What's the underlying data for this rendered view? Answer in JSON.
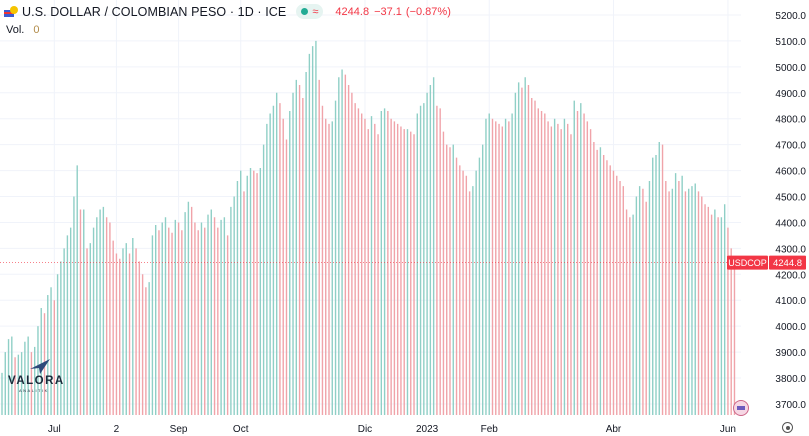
{
  "header": {
    "symbol_title": "U.S. DOLLAR / COLOMBIAN PESO · 1D · ICE",
    "approx_icon": "≈",
    "last_price": "4244.8",
    "change": "−37.1",
    "change_pct": "(−0.87%)",
    "volume_label": "Vol.",
    "volume_value": "0"
  },
  "price_tag": {
    "symbol": "USDCOP",
    "value": "4244.8"
  },
  "watermark": {
    "name": "VALORA",
    "sub": "ANALITIK"
  },
  "colors": {
    "up": "#8fcfc6",
    "down": "#f0a3a9",
    "tag": "#f23645",
    "grid": "#f0f3fa",
    "axis_text": "#131722"
  },
  "chart_data": {
    "type": "bar",
    "title": "U.S. DOLLAR / COLOMBIAN PESO · 1D · ICE",
    "ylim": [
      3650,
      5250
    ],
    "y_ticks": [
      3700,
      3800,
      3900,
      4000,
      4100,
      4200,
      4300,
      4400,
      4500,
      4600,
      4700,
      4800,
      4900,
      5000,
      5100,
      5200
    ],
    "y_tick_labels": [
      "3700.0",
      "3800.0",
      "3900.0",
      "4000.0",
      "4100.0",
      "4200.0",
      "4300.0",
      "4400.0",
      "4500.0",
      "4600.0",
      "4700.0",
      "4800.0",
      "4900.0",
      "5000.0",
      "5100.0",
      "5200.0"
    ],
    "x_ticks": [
      {
        "label": "Jul",
        "index": 16
      },
      {
        "label": "2",
        "index": 35
      },
      {
        "label": "Sep",
        "index": 54
      },
      {
        "label": "Oct",
        "index": 73
      },
      {
        "label": "Dic",
        "index": 111
      },
      {
        "label": "2023",
        "index": 130
      },
      {
        "label": "Feb",
        "index": 149
      },
      {
        "label": "Abr",
        "index": 187
      },
      {
        "label": "Jun",
        "index": 222
      }
    ],
    "values": [
      3820,
      3900,
      3950,
      3960,
      3880,
      3890,
      3900,
      3940,
      3960,
      3900,
      3920,
      4000,
      4070,
      4050,
      4120,
      4150,
      4100,
      4200,
      4250,
      4300,
      4350,
      4380,
      4500,
      4620,
      4450,
      4450,
      4300,
      4320,
      4380,
      4420,
      4450,
      4460,
      4420,
      4400,
      4330,
      4280,
      4260,
      4300,
      4320,
      4280,
      4340,
      4300,
      4250,
      4200,
      4150,
      4170,
      4350,
      4390,
      4370,
      4400,
      4420,
      4380,
      4360,
      4410,
      4400,
      4370,
      4440,
      4480,
      4460,
      4400,
      4370,
      4400,
      4380,
      4430,
      4450,
      4420,
      4380,
      4410,
      4420,
      4350,
      4460,
      4500,
      4560,
      4600,
      4520,
      4580,
      4610,
      4600,
      4590,
      4610,
      4700,
      4780,
      4820,
      4850,
      4900,
      4860,
      4800,
      4720,
      4830,
      4900,
      4950,
      4930,
      4880,
      4980,
      5050,
      5080,
      5100,
      4950,
      4850,
      4800,
      4780,
      4790,
      4870,
      4960,
      4990,
      4970,
      4930,
      4900,
      4860,
      4840,
      4820,
      4800,
      4760,
      4810,
      4780,
      4740,
      4830,
      4840,
      4830,
      4800,
      4790,
      4780,
      4770,
      4760,
      4760,
      4750,
      4740,
      4820,
      4850,
      4860,
      4900,
      4930,
      4960,
      4850,
      4840,
      4750,
      4700,
      4690,
      4700,
      4650,
      4620,
      4600,
      4580,
      4520,
      4540,
      4600,
      4650,
      4700,
      4800,
      4820,
      4800,
      4790,
      4780,
      4770,
      4800,
      4790,
      4820,
      4900,
      4940,
      4920,
      4960,
      4930,
      4880,
      4870,
      4840,
      4830,
      4820,
      4790,
      4770,
      4800,
      4780,
      4760,
      4800,
      4780,
      4740,
      4870,
      4830,
      4860,
      4820,
      4790,
      4760,
      4710,
      4680,
      4690,
      4660,
      4640,
      4620,
      4600,
      4580,
      4560,
      4540,
      4450,
      4420,
      4430,
      4500,
      4540,
      4530,
      4480,
      4560,
      4650,
      4660,
      4710,
      4700,
      4560,
      4520,
      4530,
      4590,
      4560,
      4580,
      4520,
      4530,
      4540,
      4550,
      4520,
      4500,
      4470,
      4460,
      4430,
      4450,
      4420,
      4420,
      4470,
      4380,
      4300,
      4244.8
    ]
  }
}
